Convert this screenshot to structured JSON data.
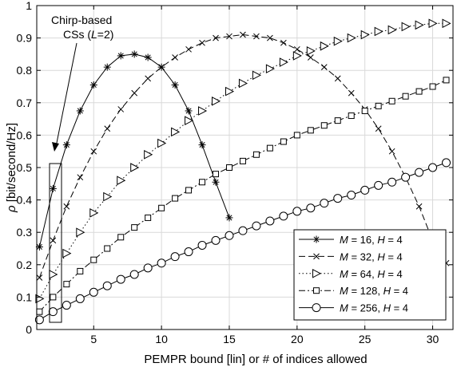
{
  "chart_data": {
    "type": "line",
    "title": "",
    "xlabel": "PEMPR bound [lin] or # of indices allowed",
    "ylabel_main": "ρ",
    "ylabel_unit": " [bit/second/Hz]",
    "xlim": [
      0.8,
      31.5
    ],
    "ylim": [
      0,
      1
    ],
    "xticks": [
      5,
      10,
      15,
      20,
      25,
      30
    ],
    "xtick_labels": [
      "5",
      "10",
      "15",
      "20",
      "25",
      "30"
    ],
    "yticks": [
      0,
      0.1,
      0.2,
      0.3,
      0.4,
      0.5,
      0.6,
      0.7,
      0.8,
      0.9,
      1
    ],
    "ytick_labels": [
      "0",
      "0.1",
      "0.2",
      "0.3",
      "0.4",
      "0.5",
      "0.6",
      "0.7",
      "0.8",
      "0.9",
      "1"
    ],
    "grid": true,
    "legend_position": "bottom-right",
    "annotation": {
      "line1": "Chirp-based",
      "line2_prefix": "CSs (",
      "line2_var": "L",
      "line2_suffix": "=2)"
    },
    "series": [
      {
        "name": "M = 16, H = 4",
        "m_value": "16",
        "h_value": "4",
        "marker": "star",
        "dash": "solid",
        "x": [
          1,
          2,
          3,
          4,
          5,
          6,
          7,
          8,
          9,
          10,
          11,
          12,
          13,
          14,
          15
        ],
        "y": [
          0.255,
          0.435,
          0.57,
          0.675,
          0.755,
          0.81,
          0.845,
          0.85,
          0.84,
          0.81,
          0.755,
          0.675,
          0.57,
          0.455,
          0.345
        ]
      },
      {
        "name": "M = 32, H = 4",
        "m_value": "32",
        "h_value": "4",
        "marker": "x",
        "dash": "dashed",
        "x": [
          1,
          2,
          3,
          4,
          5,
          6,
          7,
          8,
          9,
          10,
          11,
          12,
          13,
          14,
          15,
          16,
          17,
          18,
          19,
          20,
          21,
          22,
          23,
          24,
          25,
          26,
          27,
          28,
          29,
          30,
          31
        ],
        "y": [
          0.16,
          0.275,
          0.38,
          0.47,
          0.55,
          0.62,
          0.68,
          0.73,
          0.775,
          0.81,
          0.84,
          0.865,
          0.885,
          0.9,
          0.905,
          0.91,
          0.905,
          0.9,
          0.885,
          0.865,
          0.84,
          0.81,
          0.775,
          0.73,
          0.68,
          0.62,
          0.55,
          0.47,
          0.38,
          0.275,
          0.205
        ]
      },
      {
        "name": "M = 64, H = 4",
        "m_value": "64",
        "h_value": "4",
        "marker": "triangle-right",
        "dash": "dotted",
        "x": [
          1,
          2,
          3,
          4,
          5,
          6,
          7,
          8,
          9,
          10,
          11,
          12,
          13,
          14,
          15,
          16,
          17,
          18,
          19,
          20,
          21,
          22,
          23,
          24,
          25,
          26,
          27,
          28,
          29,
          30,
          31
        ],
        "y": [
          0.095,
          0.17,
          0.235,
          0.3,
          0.36,
          0.41,
          0.46,
          0.5,
          0.54,
          0.575,
          0.61,
          0.645,
          0.675,
          0.705,
          0.735,
          0.76,
          0.785,
          0.805,
          0.825,
          0.845,
          0.86,
          0.875,
          0.89,
          0.9,
          0.91,
          0.92,
          0.925,
          0.935,
          0.94,
          0.945,
          0.945
        ]
      },
      {
        "name": "M = 128, H = 4",
        "m_value": "128",
        "h_value": "4",
        "marker": "square",
        "dash": "dashdot",
        "x": [
          1,
          2,
          3,
          4,
          5,
          6,
          7,
          8,
          9,
          10,
          11,
          12,
          13,
          14,
          15,
          16,
          17,
          18,
          19,
          20,
          21,
          22,
          23,
          24,
          25,
          26,
          27,
          28,
          29,
          30,
          31
        ],
        "y": [
          0.055,
          0.1,
          0.14,
          0.18,
          0.215,
          0.25,
          0.285,
          0.315,
          0.345,
          0.375,
          0.405,
          0.43,
          0.455,
          0.48,
          0.5,
          0.52,
          0.54,
          0.56,
          0.58,
          0.6,
          0.615,
          0.63,
          0.645,
          0.66,
          0.675,
          0.69,
          0.705,
          0.72,
          0.735,
          0.75,
          0.77
        ]
      },
      {
        "name": "M = 256, H = 4",
        "m_value": "256",
        "h_value": "4",
        "marker": "circle",
        "dash": "solid",
        "x": [
          1,
          2,
          3,
          4,
          5,
          6,
          7,
          8,
          9,
          10,
          11,
          12,
          13,
          14,
          15,
          16,
          17,
          18,
          19,
          20,
          21,
          22,
          23,
          24,
          25,
          26,
          27,
          28,
          29,
          30,
          31
        ],
        "y": [
          0.03,
          0.055,
          0.075,
          0.095,
          0.115,
          0.135,
          0.155,
          0.17,
          0.19,
          0.205,
          0.225,
          0.24,
          0.26,
          0.275,
          0.29,
          0.305,
          0.32,
          0.335,
          0.35,
          0.365,
          0.375,
          0.39,
          0.405,
          0.415,
          0.43,
          0.445,
          0.455,
          0.47,
          0.485,
          0.5,
          0.515
        ]
      }
    ]
  }
}
